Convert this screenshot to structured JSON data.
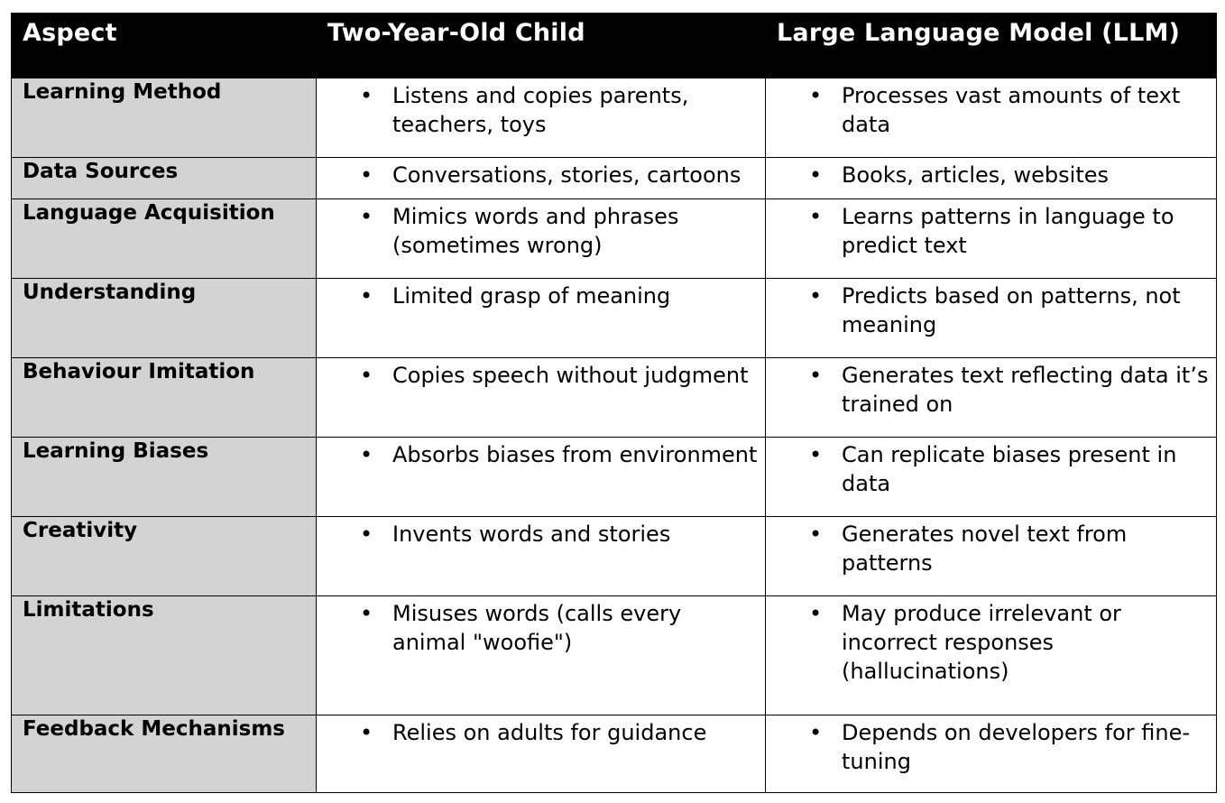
{
  "headers": [
    "Aspect",
    "Two-Year-Old Child",
    "Large Language Model (LLM)"
  ],
  "rows": [
    {
      "aspect": "Learning Method",
      "child": "Listens and copies parents, teachers, toys",
      "llm": "Processes vast amounts of text data"
    },
    {
      "aspect": "Data Sources",
      "child": "Conversations, stories, cartoons",
      "llm": "Books, articles, websites"
    },
    {
      "aspect": "Language Acquisition",
      "child": "Mimics words and phrases (sometimes wrong)",
      "llm": "Learns patterns in language to predict text"
    },
    {
      "aspect": "Understanding",
      "child": "Limited grasp of meaning",
      "llm": "Predicts based on patterns, not meaning"
    },
    {
      "aspect": "Behaviour Imitation",
      "child": "Copies speech without judgment",
      "llm": "Generates text reflecting data it’s trained on"
    },
    {
      "aspect": "Learning Biases",
      "child": "Absorbs biases from environment",
      "llm": "Can replicate biases present in data"
    },
    {
      "aspect": "Creativity",
      "child": "Invents words and stories",
      "llm": "Generates novel text from patterns"
    },
    {
      "aspect": "Limitations",
      "child": "Misuses words (calls every animal \"woofie\")",
      "llm": "May produce irrelevant or incorrect responses (hallucinations)"
    },
    {
      "aspect": "Feedback Mechanisms",
      "child": "Relies on adults for guidance",
      "llm": "Depends on developers for fine-tuning"
    }
  ]
}
